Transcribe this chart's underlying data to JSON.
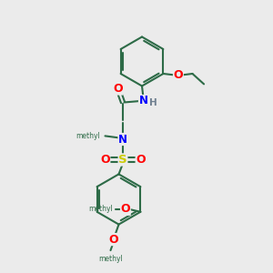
{
  "bg_color": "#ebebeb",
  "bond_color": "#2d6b47",
  "atom_colors": {
    "O": "#ff0000",
    "N": "#0000ff",
    "S": "#cccc00",
    "H": "#708090",
    "C": "#2d6b47"
  },
  "line_width": 1.5,
  "figsize": [
    3.0,
    3.0
  ],
  "dpi": 100,
  "xlim": [
    0,
    10
  ],
  "ylim": [
    0,
    10
  ]
}
